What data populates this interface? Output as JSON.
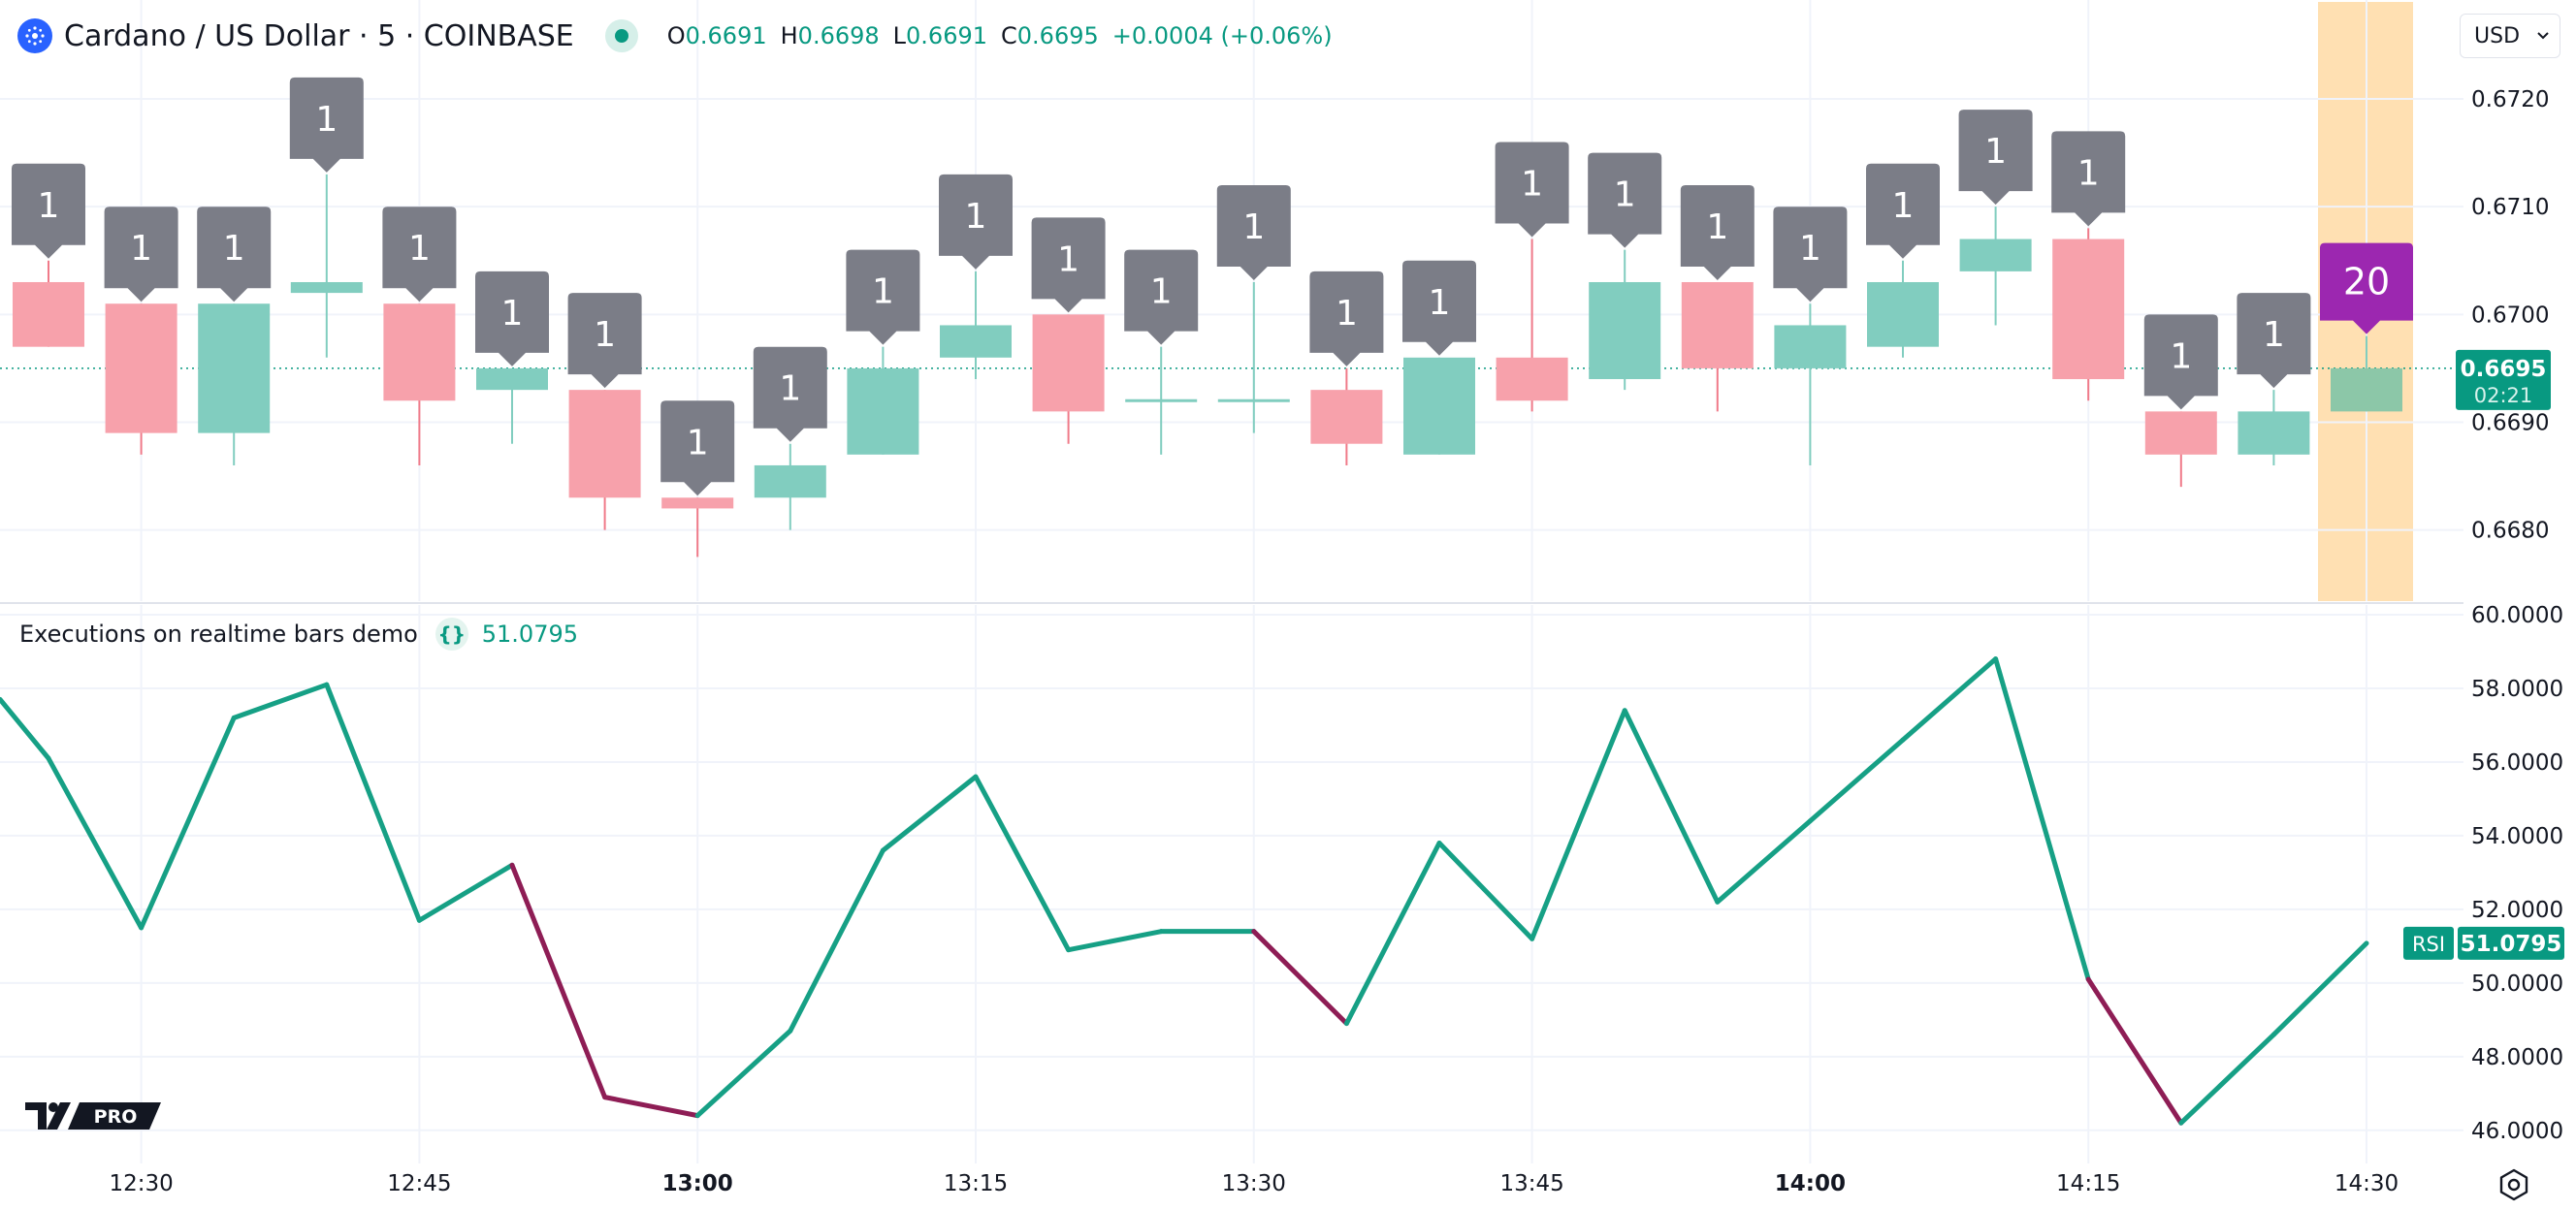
{
  "header": {
    "symbol": "Cardano / US Dollar · 5 · COINBASE",
    "ohlc": [
      {
        "key": "O",
        "value": "0.6691"
      },
      {
        "key": "H",
        "value": "0.6698"
      },
      {
        "key": "L",
        "value": "0.6691"
      },
      {
        "key": "C",
        "value": "0.6695"
      }
    ],
    "change": "+0.0004 (+0.06%)"
  },
  "currency": "USD",
  "indicator": {
    "title": "Executions on realtime bars demo",
    "value": "51.0795",
    "badge_label": "RSI",
    "badge_value": "51.0795"
  },
  "logo_text": "PRO",
  "colors": {
    "up": "#81cdbf",
    "down": "#f7a1ab",
    "up_wick": "#81cdbf",
    "down_wick": "#f07a89",
    "label": "#7b7d87",
    "label_rt": "#9c27b0",
    "highlight": "#ffe0b2",
    "rsi_up": "#16a085",
    "rsi_down": "#8e1d55",
    "price_tag": "#089981"
  },
  "chart_data": [
    {
      "type": "candlestick",
      "symbol": "Cardano / US Dollar",
      "interval": "5",
      "x_labels": [
        "12:30",
        "12:45",
        "13:00",
        "13:15",
        "13:30",
        "13:45",
        "14:00",
        "14:15",
        "14:30"
      ],
      "x_labels_bold": [
        "13:00",
        "14:00"
      ],
      "y_ticks": [
        "0.6720",
        "0.6710",
        "0.6700",
        "0.6690",
        "0.6680"
      ],
      "ylim": [
        0.66734,
        0.6729
      ],
      "last_price": "0.6695",
      "countdown": "02:21",
      "candles": [
        {
          "o": 0.6703,
          "h": 0.6705,
          "l": 0.6697,
          "c": 0.6697,
          "label": "1"
        },
        {
          "o": 0.6701,
          "h": 0.6701,
          "l": 0.6687,
          "c": 0.6689,
          "label": "1"
        },
        {
          "o": 0.6689,
          "h": 0.6701,
          "l": 0.6686,
          "c": 0.6701,
          "label": "1"
        },
        {
          "o": 0.6702,
          "h": 0.6713,
          "l": 0.6696,
          "c": 0.6703,
          "label": "1"
        },
        {
          "o": 0.6701,
          "h": 0.6701,
          "l": 0.6686,
          "c": 0.6692,
          "label": "1"
        },
        {
          "o": 0.6693,
          "h": 0.6695,
          "l": 0.6688,
          "c": 0.6695,
          "label": "1"
        },
        {
          "o": 0.6693,
          "h": 0.6693,
          "l": 0.668,
          "c": 0.6683,
          "label": "1"
        },
        {
          "o": 0.6683,
          "h": 0.6683,
          "l": 0.66775,
          "c": 0.6682,
          "label": "1"
        },
        {
          "o": 0.6683,
          "h": 0.6688,
          "l": 0.668,
          "c": 0.6686,
          "label": "1"
        },
        {
          "o": 0.6687,
          "h": 0.6697,
          "l": 0.6687,
          "c": 0.6695,
          "label": "1"
        },
        {
          "o": 0.6696,
          "h": 0.6704,
          "l": 0.6694,
          "c": 0.6699,
          "label": "1"
        },
        {
          "o": 0.67,
          "h": 0.67,
          "l": 0.6688,
          "c": 0.6691,
          "label": "1"
        },
        {
          "o": 0.6692,
          "h": 0.6697,
          "l": 0.6687,
          "c": 0.6692,
          "label": "1"
        },
        {
          "o": 0.6692,
          "h": 0.6703,
          "l": 0.6689,
          "c": 0.6692,
          "label": "1"
        },
        {
          "o": 0.6693,
          "h": 0.6695,
          "l": 0.6686,
          "c": 0.6688,
          "label": "1"
        },
        {
          "o": 0.6687,
          "h": 0.6696,
          "l": 0.6687,
          "c": 0.6696,
          "label": "1"
        },
        {
          "o": 0.6696,
          "h": 0.6707,
          "l": 0.6691,
          "c": 0.6692,
          "label": "1"
        },
        {
          "o": 0.6694,
          "h": 0.6706,
          "l": 0.6693,
          "c": 0.6703,
          "label": "1"
        },
        {
          "o": 0.6703,
          "h": 0.6703,
          "l": 0.6691,
          "c": 0.6695,
          "label": "1"
        },
        {
          "o": 0.6695,
          "h": 0.6701,
          "l": 0.6686,
          "c": 0.6699,
          "label": "1"
        },
        {
          "o": 0.6697,
          "h": 0.6705,
          "l": 0.6696,
          "c": 0.6703,
          "label": "1"
        },
        {
          "o": 0.6704,
          "h": 0.671,
          "l": 0.6699,
          "c": 0.6707,
          "label": "1"
        },
        {
          "o": 0.6707,
          "h": 0.6708,
          "l": 0.6692,
          "c": 0.6694,
          "label": "1"
        },
        {
          "o": 0.6691,
          "h": 0.6691,
          "l": 0.6684,
          "c": 0.6687,
          "label": "1"
        },
        {
          "o": 0.6687,
          "h": 0.6693,
          "l": 0.6686,
          "c": 0.6691,
          "label": "1"
        },
        {
          "o": 0.6691,
          "h": 0.6698,
          "l": 0.6691,
          "c": 0.6695,
          "label": "20",
          "realtime": true
        }
      ]
    },
    {
      "type": "line",
      "title": "RSI",
      "y_ticks": [
        "60.0000",
        "58.0000",
        "56.0000",
        "54.0000",
        "52.0000",
        "50.0000",
        "48.0000",
        "46.0000"
      ],
      "ylim": [
        45.1,
        60
      ],
      "first_value": 57.7,
      "values": [
        56.1,
        51.5,
        57.2,
        58.1,
        51.7,
        53.2,
        46.9,
        46.4,
        48.7,
        53.6,
        55.6,
        50.9,
        51.4,
        51.4,
        48.9,
        53.8,
        51.2,
        57.4,
        52.2,
        54.4,
        56.6,
        58.8,
        50.1,
        46.2,
        48.6,
        51.0795
      ],
      "up_color": "#16a085",
      "down_color": "#8e1d55"
    }
  ]
}
